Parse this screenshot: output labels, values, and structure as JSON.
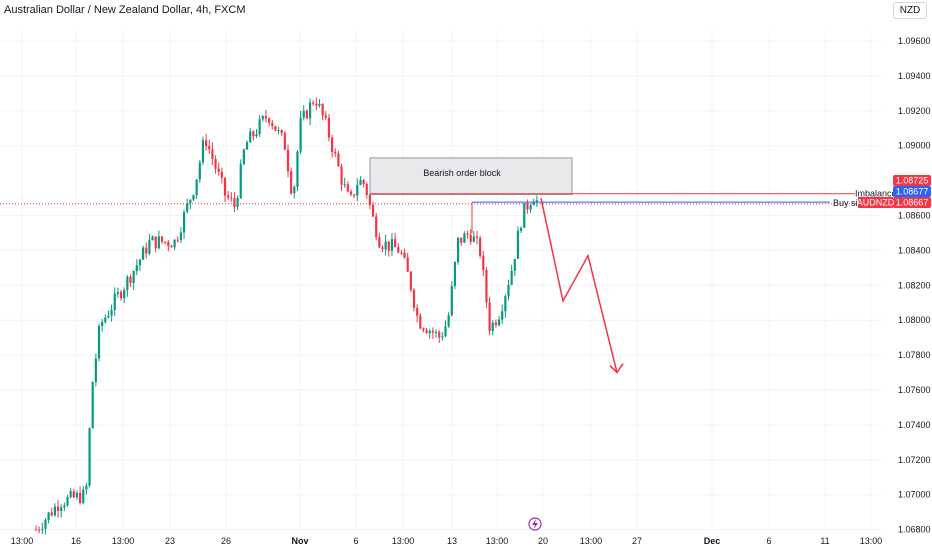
{
  "header": {
    "title": "Australian Dollar / New Zealand Dollar, 4h, FXCM",
    "currency": "NZD"
  },
  "colors": {
    "up": "#089981",
    "down": "#f23645",
    "blue": "#2962ff",
    "grid": "#f0f3fa"
  },
  "price_axis": {
    "labels": [
      "1.09600",
      "1.09400",
      "1.09200",
      "1.09000",
      "1.08600",
      "1.08400",
      "1.08200",
      "1.08000",
      "1.07800",
      "1.07600",
      "1.07400",
      "1.07200",
      "1.07000",
      "1.06800"
    ]
  },
  "time_axis": {
    "labels": [
      "13:00",
      "16",
      "13:00",
      "23",
      "26",
      "Nov",
      "6",
      "13:00",
      "13",
      "13:00",
      "20",
      "13:00",
      "27",
      "Dec",
      "6",
      "11",
      "13:00"
    ],
    "bold": [
      false,
      false,
      false,
      false,
      false,
      true,
      false,
      false,
      false,
      false,
      false,
      false,
      false,
      true,
      false,
      false,
      false
    ]
  },
  "price_tags": [
    {
      "value": "1.08725",
      "label": "Imbalance",
      "color": "#f23645"
    },
    {
      "value": "1.08677",
      "label": "Buy side",
      "color": "#2962ff"
    },
    {
      "value": "1.08667",
      "label": "AUDNZD",
      "color": "#f23645"
    }
  ],
  "annotations": {
    "order_block": "Bearish order block",
    "imbalance": "Imbalance",
    "buy_side": "Buy sid"
  },
  "chart_data": {
    "type": "candlestick",
    "symbol": "AUDNZD",
    "timeframe": "4h",
    "last_price": 1.08667,
    "ylim": [
      1.0678,
      1.0975
    ],
    "y_ticks": [
      1.096,
      1.094,
      1.092,
      1.09,
      1.086,
      1.084,
      1.082,
      1.08,
      1.078,
      1.076,
      1.074,
      1.072,
      1.07,
      1.068
    ],
    "order_block": {
      "label": "Bearish order block",
      "top": 1.0893,
      "bottom": 1.0872
    },
    "levels": [
      {
        "label": "Imbalance",
        "value": 1.08725
      },
      {
        "label": "Buy side",
        "value": 1.08677
      }
    ],
    "projection": [
      1.087,
      1.0811,
      1.0837,
      1.077
    ]
  }
}
